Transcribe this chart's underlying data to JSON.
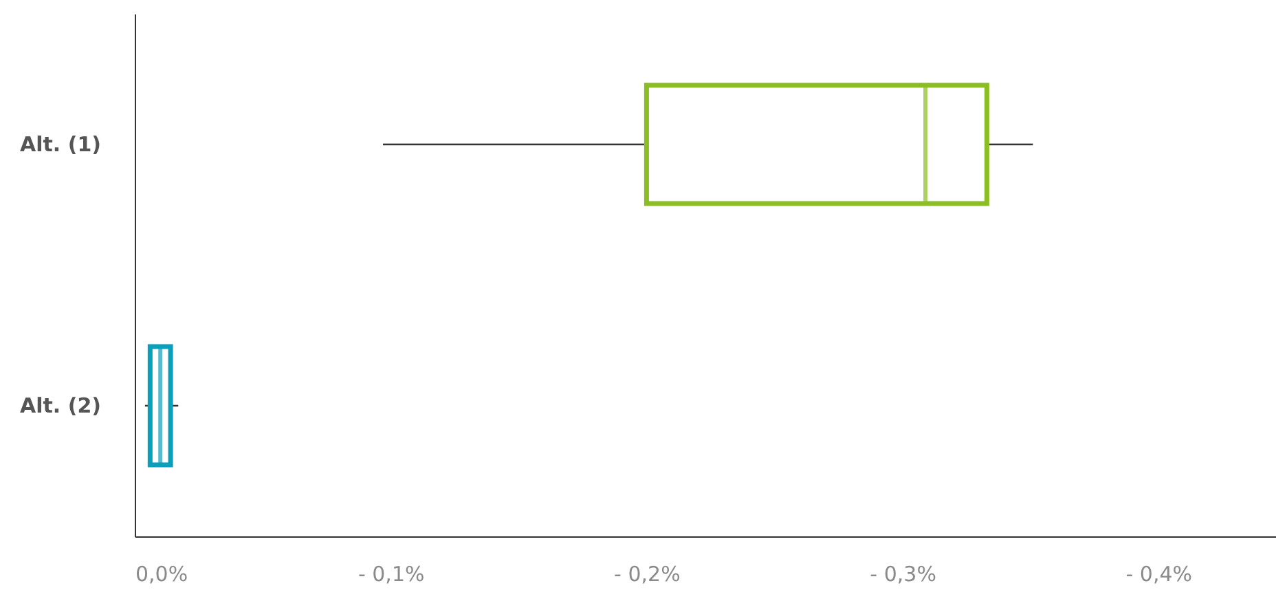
{
  "chart_data": {
    "type": "box",
    "orientation": "horizontal",
    "categories": [
      "Alt. (1)",
      "Alt. (2)"
    ],
    "boxes": [
      {
        "low": -0.351,
        "q1": -0.333,
        "median": -0.309,
        "q3": -0.2,
        "high": -0.097
      },
      {
        "low": -0.017,
        "q1": -0.014,
        "median": -0.01,
        "q3": -0.006,
        "high": -0.004
      }
    ],
    "colors": [
      "#8cbd24",
      "#0aa0bc"
    ],
    "xlim": [
      0,
      -0.446
    ],
    "xticks": [
      {
        "value": 0,
        "label": "0,0%"
      },
      {
        "value": -0.1,
        "label": "- 0,1%"
      },
      {
        "value": -0.2,
        "label": "- 0,2%"
      },
      {
        "value": -0.3,
        "label": "- 0,3%"
      },
      {
        "value": -0.4,
        "label": "- 0,4%"
      }
    ]
  }
}
